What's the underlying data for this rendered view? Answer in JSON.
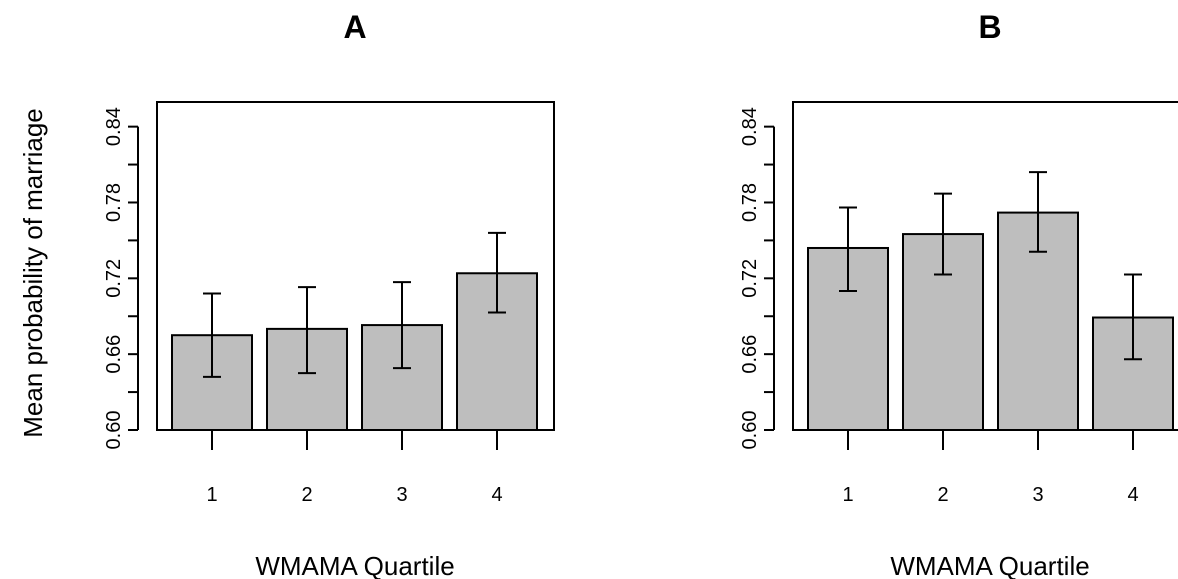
{
  "figure": {
    "shared_ylabel": "Mean probability of marriage"
  },
  "chart_data": [
    {
      "type": "bar",
      "title": "A",
      "xlabel": "WMAMA Quartile",
      "ylabel": "Mean probability of marriage",
      "categories": [
        "1",
        "2",
        "3",
        "4"
      ],
      "values": [
        0.675,
        0.68,
        0.683,
        0.724
      ],
      "error_low": [
        0.642,
        0.645,
        0.649,
        0.693
      ],
      "error_high": [
        0.708,
        0.713,
        0.717,
        0.756
      ],
      "ylim": [
        0.6,
        0.85
      ],
      "yticks": [
        0.6,
        0.66,
        0.72,
        0.78,
        0.84
      ],
      "ytick_labels": [
        "0.60",
        "0.66",
        "0.72",
        "0.78",
        "0.84"
      ],
      "grid": false,
      "box": "full"
    },
    {
      "type": "bar",
      "title": "B",
      "xlabel": "WMAMA Quartile",
      "ylabel": "",
      "categories": [
        "1",
        "2",
        "3",
        "4"
      ],
      "values": [
        0.744,
        0.755,
        0.772,
        0.689
      ],
      "error_low": [
        0.71,
        0.723,
        0.741,
        0.656
      ],
      "error_high": [
        0.776,
        0.787,
        0.804,
        0.723
      ],
      "ylim": [
        0.6,
        0.85
      ],
      "yticks": [
        0.6,
        0.66,
        0.72,
        0.78,
        0.84
      ],
      "ytick_labels": [
        "0.60",
        "0.66",
        "0.72",
        "0.78",
        "0.84"
      ],
      "grid": false,
      "box": "cropped at right edge"
    }
  ]
}
